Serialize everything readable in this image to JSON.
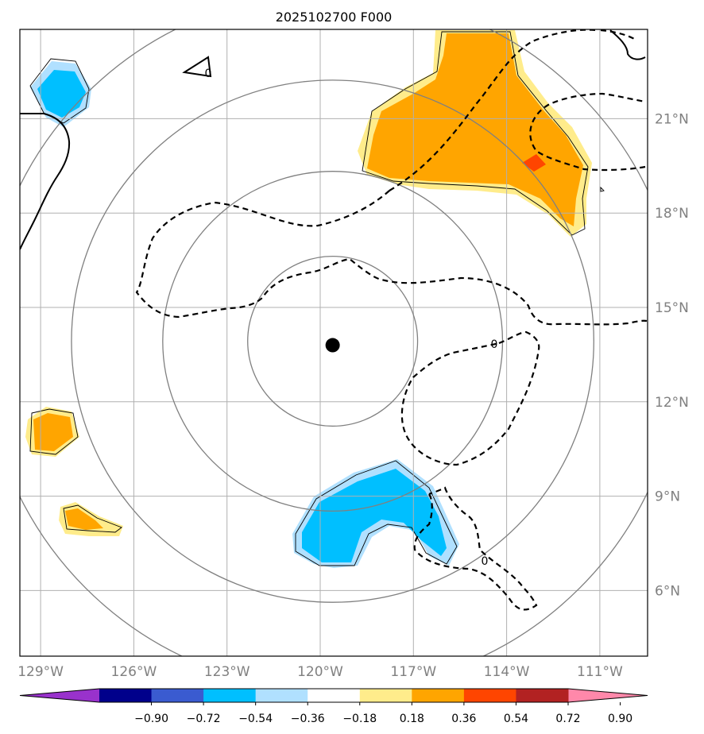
{
  "title": "2025102700 F000",
  "map": {
    "projection": "azimuthal centered on storm",
    "center": {
      "lon": -119.6,
      "lat": 13.8
    },
    "lon_ticks": [
      {
        "value": -129,
        "label": "129°W"
      },
      {
        "value": -126,
        "label": "126°W"
      },
      {
        "value": -123,
        "label": "123°W"
      },
      {
        "value": -120,
        "label": "120°W"
      },
      {
        "value": -117,
        "label": "117°W"
      },
      {
        "value": -114,
        "label": "114°W"
      },
      {
        "value": -111,
        "label": "111°W"
      }
    ],
    "lat_ticks": [
      {
        "value": 21,
        "label": "21°N"
      },
      {
        "value": 18,
        "label": "18°N"
      },
      {
        "value": 15,
        "label": "15°N"
      },
      {
        "value": 12,
        "label": "12°N"
      },
      {
        "value": 9,
        "label": "9°N"
      },
      {
        "value": 6,
        "label": "6°N"
      }
    ],
    "range_rings_deg": [
      2.7,
      5.4,
      8.3,
      11.1
    ],
    "contour_label": "0",
    "gridline_color": "#b0b0b0",
    "ring_color": "#808080",
    "land_color": "#000000"
  },
  "colorbar": {
    "colors": [
      "#9932cc",
      "#00008b",
      "#3a5bd0",
      "#00bfff",
      "#b0e0ff",
      "#ffffff",
      "#ffec8b",
      "#ffa500",
      "#ff4500",
      "#b22222",
      "#ff88aa"
    ],
    "boundaries": [
      "−0.90",
      "−0.72",
      "−0.54",
      "−0.36",
      "−0.18",
      "0.18",
      "0.36",
      "0.54",
      "0.72",
      "0.90"
    ]
  }
}
